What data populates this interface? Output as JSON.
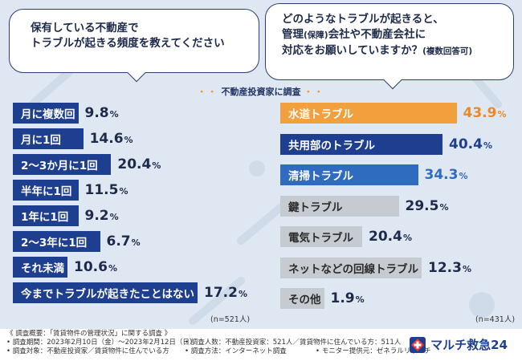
{
  "left_question": {
    "line1": "保有している不動産で",
    "line2": "トラブルが起きる頻度を教えてください"
  },
  "right_question": {
    "line1": "どのようなトラブルが起きると、",
    "line2_a": "管理",
    "line2_small": "(保障)",
    "line2_b": "会社や不動産会社に",
    "line3": "対応をお願いしていますか？",
    "line3_small": "(複数回答可)"
  },
  "survey_label": "不動産投資家に調査",
  "chart_data": [
    {
      "type": "bar",
      "orientation": "horizontal",
      "title": "保有している不動産でトラブルが起きる頻度を教えてください",
      "categories": [
        "月に複数回",
        "月に1回",
        "2〜3か月に1回",
        "半年に1回",
        "1年に1回",
        "2〜3年に1回",
        "それ未満",
        "今までトラブルが起きたことはない"
      ],
      "values": [
        9.8,
        14.6,
        20.4,
        11.5,
        9.2,
        6.7,
        10.6,
        17.2
      ],
      "value_labels": [
        "9.8",
        "14.6",
        "20.4",
        "11.5",
        "9.2",
        "6.7",
        "10.6",
        "17.2"
      ],
      "unit": "%",
      "sample": "(n=521人)"
    },
    {
      "type": "bar",
      "orientation": "horizontal",
      "title": "どのようなトラブルが起きると、管理(保障)会社や不動産会社に対応をお願いしていますか？(複数回答可)",
      "categories": [
        "水道トラブル",
        "共用部のトラブル",
        "清掃トラブル",
        "鍵トラブル",
        "電気トラブル",
        "ネットなどの回線トラブル",
        "その他"
      ],
      "values": [
        43.9,
        40.4,
        34.3,
        29.5,
        20.4,
        12.3,
        1.9
      ],
      "value_labels": [
        "43.9",
        "40.4",
        "34.3",
        "29.5",
        "20.4",
        "12.3",
        "1.9"
      ],
      "unit": "%",
      "sample": "(n=431人)"
    }
  ],
  "colors": {
    "navy": "#1e3f8f",
    "orange": "#f2a03d",
    "blue": "#2f6cc0",
    "gray": "#c6cbd2"
  },
  "footer": {
    "line1": "《 調査概要：「賃貸物件の管理状況」に関する調査 》",
    "period": "• 調査期間：2023年2月10日（金）〜2023年2月12日（日）",
    "respondents": "• 調査人数：不動産投資家：521人／賃貸物件に住んでいる方：511人",
    "target": "• 調査対象：不動産投資家／賃貸物件に住んでいる方",
    "method": "• 調査方法：インターネット調査",
    "provider": "• モニター提供元：ゼネラルリサーチ"
  },
  "logo": {
    "text": "マルチ救急24",
    "icon": "multi-kyukyu-logo-icon"
  }
}
